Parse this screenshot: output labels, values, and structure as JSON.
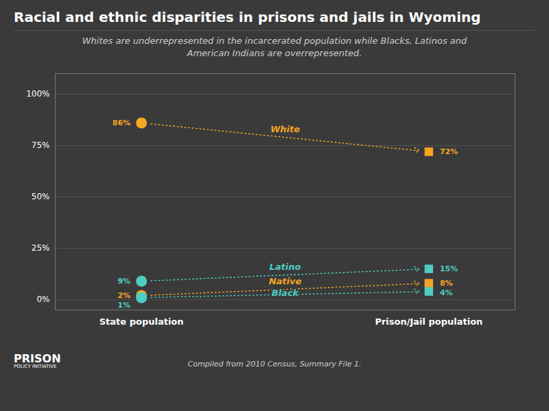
{
  "chart_data": {
    "type": "slope",
    "title": "Racial and ethnic disparities in prisons and jails in Wyoming",
    "subtitle": "Whites are underrepresented in the incarcerated population while Blacks, Latinos and\nAmerican Indians are overrepresented.",
    "footer": "Compiled from 2010 Census, Summary File 1.",
    "annotations": [
      "PRISON",
      "POLICY INITIATIVE"
    ],
    "categories": [
      "State population",
      "Prison/Jail population"
    ],
    "series": [
      {
        "name": "White",
        "color": "#f5a623",
        "values": [
          86,
          72
        ],
        "value_labels": [
          "86%",
          "72%"
        ],
        "line_style": "dotted"
      },
      {
        "name": "Latino",
        "color": "#4ecdc4",
        "values": [
          9,
          15
        ],
        "value_labels": [
          "9%",
          "15%"
        ],
        "line_style": "dotted"
      },
      {
        "name": "Native",
        "color": "#f5a623",
        "values": [
          2,
          8
        ],
        "value_labels": [
          "2%",
          "8%"
        ],
        "line_style": "dotted"
      },
      {
        "name": "Black",
        "color": "#4ecdc4",
        "values": [
          1,
          4
        ],
        "value_labels": [
          "1%",
          "4%"
        ],
        "line_style": "dotted"
      }
    ],
    "ylim": [
      -5,
      110
    ],
    "yticks": [
      {
        "value": 0,
        "label": "0%"
      },
      {
        "value": 25,
        "label": "25%"
      },
      {
        "value": 50,
        "label": "50%"
      },
      {
        "value": 75,
        "label": "75%"
      },
      {
        "value": 100,
        "label": "100%"
      }
    ],
    "grid": true,
    "data_labels": true
  }
}
